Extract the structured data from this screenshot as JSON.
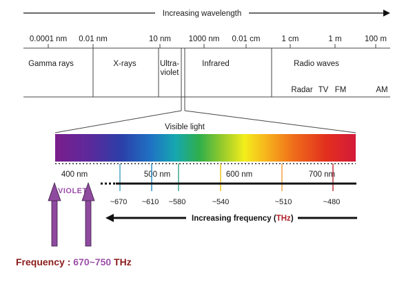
{
  "top_arrow": {
    "label": "Increasing wavelength"
  },
  "wavelength_scale": {
    "ticks": [
      "0.0001 nm",
      "0.01 nm",
      "10 nm",
      "1000 nm",
      "0.01 cm",
      "1 cm",
      "1 m",
      "100 m"
    ]
  },
  "bands": {
    "gamma": "Gamma rays",
    "xrays": "X-rays",
    "uv_line1": "Ultra-",
    "uv_line2": "violet",
    "infrared": "Infrared",
    "radio": "Radio waves",
    "radio_sub": [
      "Radar",
      "TV",
      "FM",
      "AM"
    ]
  },
  "visible": {
    "label": "Visible light",
    "nm_ticks": [
      "400 nm",
      "500 nm",
      "600 nm",
      "700 nm"
    ],
    "violet_label": "VIOLET",
    "thz_values": [
      "~670",
      "~610",
      "~580",
      "~540",
      "~510",
      "~480"
    ],
    "thz_colors": [
      "#4aa3c8",
      "#2e8fc9",
      "#3aa88e",
      "#e8c21a",
      "#f0a040",
      "#c0303a"
    ]
  },
  "frequency_arrow": {
    "label": "Increasing frequency",
    "unit": "THz"
  },
  "footer": {
    "prefix": "Frequency : ",
    "value": "670~750",
    "unit": " THz"
  },
  "colors": {
    "footer_red": "#8b1a1a",
    "footer_purple": "#9b4fa8",
    "arrow_purple": "#8e4a9e",
    "unit_red": "#b0202a"
  }
}
